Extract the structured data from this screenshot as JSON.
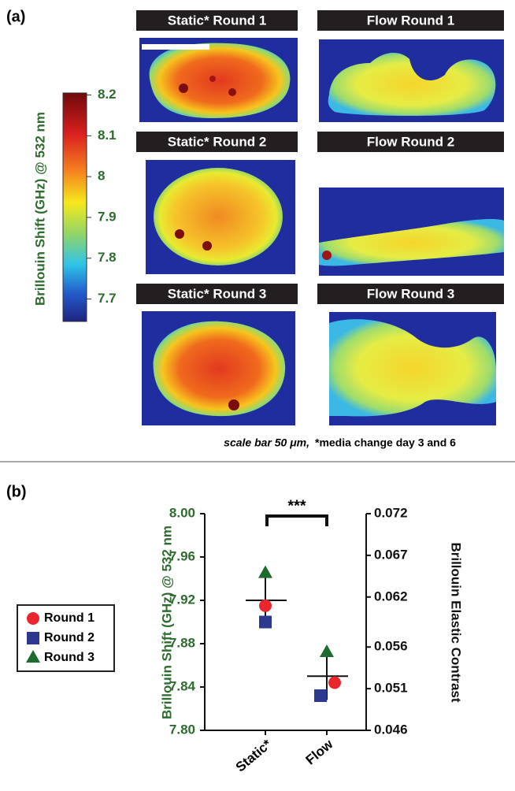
{
  "panel_labels": [
    "(a)",
    "(b)"
  ],
  "panel_a": {
    "colorbar": {
      "label": "Brillouin Shift (GHz) @ 532 nm",
      "lim": [
        7.645,
        8.205
      ],
      "ticks": [
        8.2,
        8.1,
        8,
        7.9,
        7.8,
        7.7
      ],
      "label_color": "#2e6b2e"
    },
    "image_titles": [
      "Static* Round 1",
      "Flow Round 1",
      "Static* Round 2",
      "Flow Round 2",
      "Static* Round 3",
      "Flow Round 3"
    ],
    "caption": [
      "scale bar 50 μm,",
      "*media change day 3 and 6"
    ]
  },
  "chart_data": {
    "type": "scatter",
    "categories": [
      "Static*",
      "Flow"
    ],
    "ylabel": "Brillouin Shift (GHz) @ 532 nm",
    "y2label": "Brillouin Elastic Contrast",
    "ylim": [
      7.8,
      8.0
    ],
    "yticks": [
      {
        "value": 7.8,
        "label": "7.80"
      },
      7.84,
      7.88,
      7.92,
      7.96,
      {
        "value": 8.0,
        "label": "8.00"
      }
    ],
    "y2lim": [
      0.046,
      0.072
    ],
    "y2ticks": [
      0.046,
      0.051,
      0.056,
      0.062,
      0.067,
      0.072
    ],
    "series": [
      {
        "name": "Round 1",
        "color": "#e8262b",
        "marker": "circle",
        "values": [
          7.915,
          7.844
        ]
      },
      {
        "name": "Round 2",
        "color": "#2b3990",
        "marker": "square",
        "values": [
          7.9,
          7.832
        ]
      },
      {
        "name": "Round 3",
        "color": "#1e6b2e",
        "marker": "triangle",
        "values": [
          7.945,
          7.872
        ]
      }
    ],
    "means": [
      7.92,
      7.85
    ],
    "errors": [
      0.025,
      0.022
    ],
    "significance": "***"
  }
}
